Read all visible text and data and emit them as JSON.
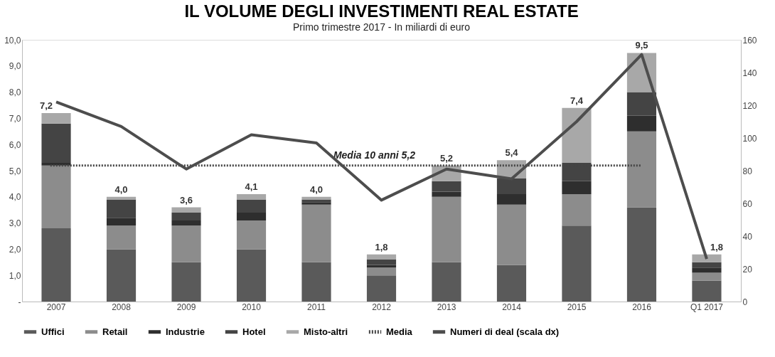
{
  "chart_data": {
    "type": "bar",
    "title": "IL VOLUME DEGLI INVESTIMENTI REAL ESTATE",
    "subtitle": "Primo trimestre 2017 - In miliardi di euro",
    "categories": [
      "2007",
      "2008",
      "2009",
      "2010",
      "2011",
      "2012",
      "2013",
      "2014",
      "2015",
      "2016",
      "Q1 2017"
    ],
    "stacked": true,
    "series": [
      {
        "name": "Uffici",
        "color": "#5a5a5a",
        "values": [
          2.8,
          2.0,
          1.5,
          2.0,
          1.5,
          1.0,
          1.5,
          1.4,
          2.9,
          3.6,
          0.8
        ]
      },
      {
        "name": "Retail",
        "color": "#8c8c8c",
        "values": [
          2.4,
          0.9,
          1.4,
          1.1,
          2.2,
          0.3,
          2.5,
          2.3,
          1.2,
          2.9,
          0.3
        ]
      },
      {
        "name": "Industrie",
        "color": "#2e2e2e",
        "values": [
          0.1,
          0.3,
          0.2,
          0.3,
          0.1,
          0.1,
          0.2,
          0.4,
          0.5,
          0.6,
          0.2
        ]
      },
      {
        "name": "Hotel",
        "color": "#444444",
        "values": [
          1.5,
          0.7,
          0.3,
          0.5,
          0.1,
          0.2,
          0.4,
          0.6,
          0.7,
          0.9,
          0.2
        ]
      },
      {
        "name": "Misto-altri",
        "color": "#a8a8a8",
        "values": [
          0.4,
          0.1,
          0.2,
          0.2,
          0.1,
          0.2,
          0.6,
          0.7,
          2.1,
          1.5,
          0.3
        ]
      },
      {
        "name": "Numeri di deal (scala dx)",
        "type": "line",
        "axis": "y2",
        "color": "#4d4d4d",
        "values": [
          122,
          107,
          81,
          102,
          97,
          62,
          81,
          75,
          110,
          151,
          26
        ]
      }
    ],
    "totals": [
      "7,2",
      "4,0",
      "3,6",
      "4,1",
      "4,0",
      "1,8",
      "5,2",
      "5,4",
      "7,4",
      "9,5",
      "1,8"
    ],
    "ylim": [
      0,
      10
    ],
    "yticks": [
      {
        "value": 0,
        "label": "-"
      },
      {
        "value": 1,
        "label": "1,0"
      },
      {
        "value": 2,
        "label": "2,0"
      },
      {
        "value": 3,
        "label": "3,0"
      },
      {
        "value": 4,
        "label": "4,0"
      },
      {
        "value": 5,
        "label": "5,0"
      },
      {
        "value": 6,
        "label": "6,0"
      },
      {
        "value": 7,
        "label": "7,0"
      },
      {
        "value": 8,
        "label": "8,0"
      },
      {
        "value": 9,
        "label": "9,0"
      },
      {
        "value": 10,
        "label": "10,0"
      }
    ],
    "y2lim": [
      0,
      160
    ],
    "y2ticks": [
      0,
      20,
      40,
      60,
      80,
      100,
      120,
      140,
      160
    ],
    "ref_lines": [
      {
        "axis": "y",
        "value": 5.2,
        "label": "Media",
        "color": "#444444",
        "line_style": "dotted"
      }
    ],
    "annotations": [
      {
        "text": "Media 10 anni 5,2",
        "x": "2012",
        "y": 5.2
      }
    ],
    "legend": "bottom",
    "grid": false
  }
}
